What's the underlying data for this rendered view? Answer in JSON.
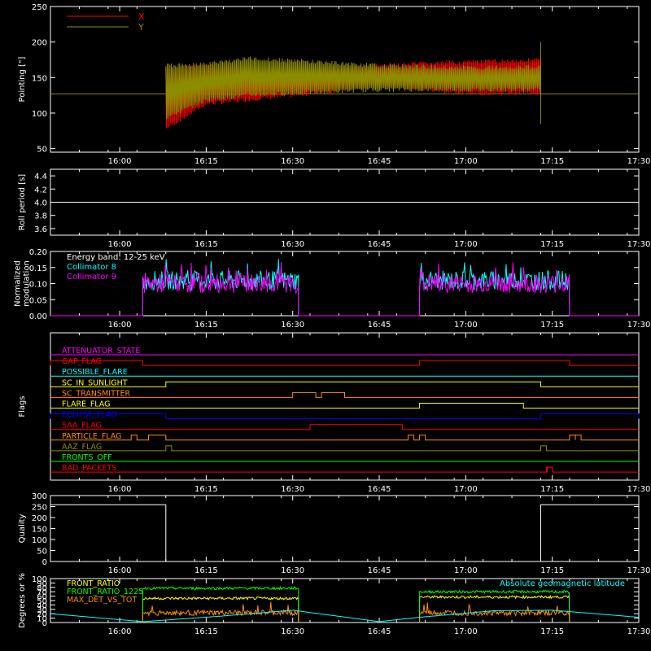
{
  "chart_data": [
    {
      "id": "pointing",
      "type": "line",
      "ylabel": "Pointing [\"]",
      "ylim": [
        45,
        250
      ],
      "yticks": [
        50,
        100,
        150,
        200,
        250
      ],
      "xlim": [
        "15:48",
        "17:30"
      ],
      "xticks": [
        "16:00",
        "16:15",
        "16:30",
        "16:45",
        "17:00",
        "17:15",
        "17:30"
      ],
      "legend": "top-left",
      "series": [
        {
          "name": "X",
          "color": "#ff0000",
          "x": [
            "16:08",
            "16:15",
            "16:30",
            "16:45",
            "17:00",
            "17:13"
          ],
          "y_upper": [
            165,
            170,
            160,
            170,
            175,
            178
          ],
          "y_lower": [
            75,
            110,
            122,
            135,
            125,
            125
          ]
        },
        {
          "name": "Y",
          "color": "#8c8c00",
          "x": [
            "16:08",
            "16:15",
            "16:22",
            "16:30",
            "16:45",
            "17:00",
            "17:13"
          ],
          "y_upper": [
            170,
            172,
            180,
            177,
            170,
            167,
            168
          ],
          "y_lower": [
            90,
            115,
            122,
            125,
            130,
            130,
            130
          ]
        }
      ],
      "baseline": 127
    },
    {
      "id": "roll",
      "type": "line",
      "ylabel": "Roll period [s]",
      "ylim": [
        3.5,
        4.5
      ],
      "yticks": [
        "3.6",
        "3.8",
        "4.0",
        "4.2",
        "4.4"
      ],
      "xticks": [
        "16:00",
        "16:15",
        "16:30",
        "16:45",
        "17:00",
        "17:15",
        "17:30"
      ],
      "series": [
        {
          "name": "",
          "color": "#ffffff",
          "x": [
            "15:48",
            "17:30"
          ],
          "y": [
            4.0,
            4.0
          ]
        }
      ]
    },
    {
      "id": "modulation",
      "type": "line",
      "ylabel_lines": [
        "Normalized",
        "modulation"
      ],
      "ylim": [
        0,
        0.2
      ],
      "yticks": [
        "0.00",
        "0.05",
        "0.10",
        "0.15",
        "0.20"
      ],
      "xticks": [
        "16:00",
        "16:15",
        "16:30",
        "16:45",
        "17:00",
        "17:15",
        "17:30"
      ],
      "annotation": "Energy band: 12-25 keV",
      "series": [
        {
          "name": "Collimator 8",
          "color": "#00ffff",
          "intervals": [
            [
              "16:04",
              "16:31"
            ],
            [
              "16:52",
              "17:18"
            ]
          ],
          "mean": 0.11
        },
        {
          "name": "Collimator 9",
          "color": "#ff00ff",
          "intervals": [
            [
              "16:04",
              "16:31"
            ],
            [
              "16:52",
              "17:18"
            ]
          ],
          "mean": 0.1
        }
      ]
    },
    {
      "id": "flags",
      "type": "line",
      "ylabel": "Flags",
      "xticks": [
        "16:00",
        "16:15",
        "16:30",
        "16:45",
        "17:00",
        "17:15",
        "17:30"
      ],
      "flags": [
        {
          "name": "ATTENUATOR_STATE",
          "color": "#ff00ff",
          "on": []
        },
        {
          "name": "SAA_FLAG_2",
          "label": "GAP_FLAG",
          "color": "#ff0000",
          "on": [
            [
              "15:48",
              "16:04"
            ],
            [
              "16:52",
              "17:18"
            ]
          ]
        },
        {
          "name": "POSSIBLE_FLARE",
          "color": "#00ffff",
          "on": []
        },
        {
          "name": "SC_IN_SUNLIGHT",
          "color": "#ffff00",
          "on": [
            [
              "16:08",
              "17:13"
            ]
          ]
        },
        {
          "name": "SC_TRANSMITTER",
          "color": "#ff8c00",
          "on": [
            [
              "16:30",
              "16:34"
            ],
            [
              "16:35",
              "16:39"
            ]
          ]
        },
        {
          "name": "FLARE_FLAG",
          "color": "#ffff00",
          "on": [
            [
              "16:52",
              "17:10"
            ]
          ]
        },
        {
          "name": "ECLIPSE_FLAG",
          "color": "#0000ff",
          "on": [
            [
              "15:48",
              "16:08"
            ],
            [
              "17:13",
              "17:30"
            ]
          ]
        },
        {
          "name": "SAA_FLAG",
          "color": "#ff0000",
          "on": [
            [
              "16:33",
              "16:49"
            ]
          ]
        },
        {
          "name": "PARTICLE_FLAG",
          "color": "#ff8c00",
          "on": [
            [
              "16:02",
              "16:03"
            ],
            [
              "16:05",
              "16:08"
            ],
            [
              "16:50",
              "16:51"
            ],
            [
              "16:52",
              "16:53"
            ],
            [
              "17:18",
              "17:19"
            ],
            [
              "17:19",
              "17:20"
            ]
          ]
        },
        {
          "name": "AAZ_FLAG",
          "color": "#8c8c00",
          "on": [
            [
              "16:08",
              "16:09"
            ],
            [
              "17:13",
              "17:14"
            ]
          ]
        },
        {
          "name": "FRONTS_OFF",
          "color": "#00ff00",
          "on": []
        },
        {
          "name": "BAD_PACKETS",
          "color": "#ff0000",
          "on": [
            [
              "17:14",
              "17:14"
            ],
            [
              "17:14",
              "17:15"
            ]
          ]
        }
      ]
    },
    {
      "id": "quality",
      "type": "line",
      "ylabel": "Quality",
      "ylim": [
        0,
        300
      ],
      "yticks": [
        0,
        50,
        100,
        150,
        200,
        250,
        300
      ],
      "xticks": [
        "16:00",
        "16:15",
        "16:30",
        "16:45",
        "17:00",
        "17:15",
        "17:30"
      ],
      "series": [
        {
          "name": "",
          "color": "#ffffff",
          "x": [
            "15:48",
            "16:08",
            "16:08",
            "17:13",
            "17:13",
            "17:30"
          ],
          "y": [
            258,
            258,
            0,
            0,
            258,
            258
          ]
        }
      ]
    },
    {
      "id": "ratios",
      "type": "line",
      "ylabel": "Degrees or %",
      "ylim": [
        0,
        100
      ],
      "yticks": [
        0,
        10,
        20,
        30,
        40,
        50,
        60,
        70,
        80,
        90,
        100
      ],
      "xticks": [
        "16:00",
        "16:15",
        "16:30",
        "16:45",
        "17:00",
        "17:15",
        "17:30"
      ],
      "series": [
        {
          "name": "FRONT_RATIO",
          "color": "#ffff00",
          "intervals": [
            [
              "16:04",
              "16:31"
            ],
            [
              "16:52",
              "17:18"
            ]
          ],
          "mean": [
            55,
            58
          ]
        },
        {
          "name": "FRONT_RATIO_1225",
          "color": "#00ff00",
          "intervals": [
            [
              "16:04",
              "16:31"
            ],
            [
              "16:52",
              "17:18"
            ]
          ],
          "mean": [
            78,
            70
          ]
        },
        {
          "name": "MAX_DET_VS_TOT",
          "color": "#ff8c00",
          "intervals": [
            [
              "16:04",
              "16:31"
            ],
            [
              "16:52",
              "17:18"
            ]
          ],
          "mean": [
            22,
            22
          ]
        },
        {
          "name": "Absolute geomagnetic latitude",
          "color": "#00ffff",
          "x": [
            "15:48",
            "16:04",
            "16:18",
            "16:30",
            "16:45",
            "16:52",
            "17:05",
            "17:15",
            "17:30"
          ],
          "y": [
            20,
            2,
            15,
            28,
            2,
            12,
            27,
            28,
            12
          ]
        }
      ]
    }
  ]
}
